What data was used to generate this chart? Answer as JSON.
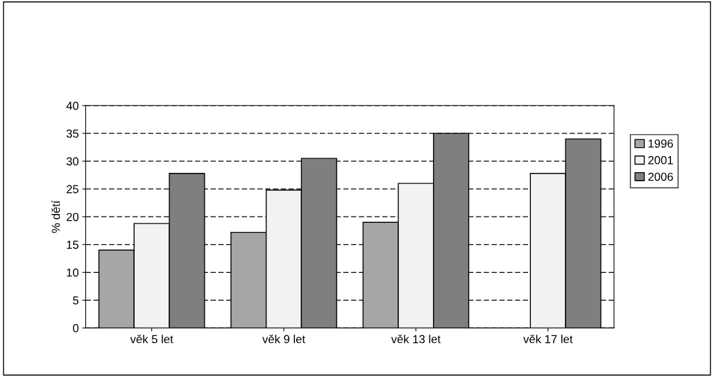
{
  "chart_data": {
    "type": "bar",
    "ylabel": "% dětí",
    "categories": [
      "věk 5 let",
      "věk 9 let",
      "věk 13 let",
      "věk 17 let"
    ],
    "series": [
      {
        "name": "1996",
        "color": "#a6a6a6",
        "values": [
          14,
          17.2,
          19,
          null
        ]
      },
      {
        "name": "2001",
        "color": "#f2f2f2",
        "values": [
          18.8,
          24.8,
          26,
          27.8
        ]
      },
      {
        "name": "2006",
        "color": "#7f7f7f",
        "values": [
          27.8,
          30.5,
          35,
          34
        ]
      }
    ],
    "ylim": [
      0,
      40
    ],
    "yticks": [
      0,
      5,
      10,
      15,
      20,
      25,
      30,
      35,
      40
    ],
    "grid": "y",
    "line_style": "dashed",
    "legend": "right"
  }
}
